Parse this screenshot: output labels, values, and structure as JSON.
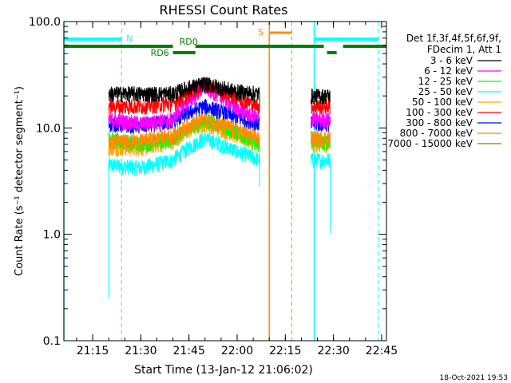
{
  "chart_data": {
    "type": "line",
    "title": "RHESSI Count Rates",
    "xlabel": "Start Time (13-Jan-12 21:06:02)",
    "ylabel": "Count Rate (s⁻¹ detector segment⁻¹)",
    "y_scale": "log",
    "ylim": [
      0.1,
      100.0
    ],
    "xlim": [
      "21:06:02",
      "22:46:30"
    ],
    "x_ticks": [
      "21:15",
      "21:30",
      "21:45",
      "22:00",
      "22:15",
      "22:30",
      "22:45"
    ],
    "y_ticks": [
      "0.1",
      "1.0",
      "10.0",
      "100.0"
    ],
    "legend_position": "right",
    "legend_header": [
      "Det 1f,3f,4f,5f,6f,9f,",
      "FDecim 1, Att 1"
    ],
    "series": [
      {
        "name": "3 - 6 keV",
        "color": "#000000",
        "x": [
          "21:20",
          "21:30",
          "21:40",
          "21:45",
          "21:50",
          "22:00",
          "22:07",
          "22:23",
          "22:29"
        ],
        "y": [
          21,
          21,
          21,
          24,
          26,
          22,
          21,
          20,
          20
        ]
      },
      {
        "name": "6 - 12 keV",
        "color": "#ff00ff",
        "x": [
          "21:20",
          "21:30",
          "21:40",
          "21:45",
          "21:50",
          "22:00",
          "22:07",
          "22:23",
          "22:29"
        ],
        "y": [
          12,
          11,
          12,
          18,
          24,
          15,
          12,
          12,
          12
        ]
      },
      {
        "name": "12 - 25 keV",
        "color": "#00ff00",
        "x": [
          "21:20",
          "21:30",
          "21:40",
          "21:45",
          "21:50",
          "22:00",
          "22:07",
          "22:23",
          "22:29"
        ],
        "y": [
          8,
          7,
          8,
          10,
          12,
          9,
          7,
          8,
          7
        ]
      },
      {
        "name": "25 - 50 keV",
        "color": "#00ffff",
        "x": [
          "21:20",
          "21:30",
          "21:40",
          "21:45",
          "21:50",
          "22:00",
          "22:07",
          "22:23",
          "22:29"
        ],
        "y": [
          4.5,
          4.2,
          5.0,
          6.5,
          8.0,
          6.0,
          5.0,
          5.0,
          5.0
        ]
      },
      {
        "name": "50 - 100 keV",
        "color": "#ffa500",
        "x": [
          "21:20",
          "21:30",
          "21:40",
          "21:45",
          "21:50",
          "22:00",
          "22:07",
          "22:23",
          "22:29"
        ],
        "y": [
          6.5,
          6.5,
          7.5,
          9.5,
          11,
          8.5,
          7,
          7,
          7
        ]
      },
      {
        "name": "100 - 300 keV",
        "color": "#ff0000",
        "x": [
          "21:20",
          "21:30",
          "21:40",
          "21:45",
          "21:50",
          "22:00",
          "22:07",
          "22:23",
          "22:29"
        ],
        "y": [
          16,
          16,
          17,
          21,
          26,
          19,
          16,
          16,
          16
        ]
      },
      {
        "name": "300 - 800 keV",
        "color": "#0000ff",
        "x": [
          "21:20",
          "21:30",
          "21:40",
          "21:45",
          "21:50",
          "22:00",
          "22:07",
          "22:23",
          "22:29"
        ],
        "y": [
          11,
          10.5,
          11.5,
          14,
          16,
          12.5,
          11,
          11,
          11
        ]
      },
      {
        "name": "800 - 7000 keV",
        "color": "#ff8c00",
        "x": [
          "21:20",
          "21:30",
          "21:40",
          "21:45",
          "21:50",
          "22:00",
          "22:07",
          "22:23",
          "22:29"
        ],
        "y": [
          7.5,
          7.5,
          8.5,
          10.5,
          12,
          9.5,
          8,
          8,
          8
        ]
      },
      {
        "name": "7000 - 15000 keV",
        "color": "#808000",
        "x": [],
        "y": []
      }
    ],
    "annotations": {
      "night_label": "N",
      "saa_label": "S",
      "rd0_label": "RD0",
      "rd6_label": "RD6"
    }
  },
  "footer": {
    "timestamp": "18-Oct-2021 19:53"
  }
}
